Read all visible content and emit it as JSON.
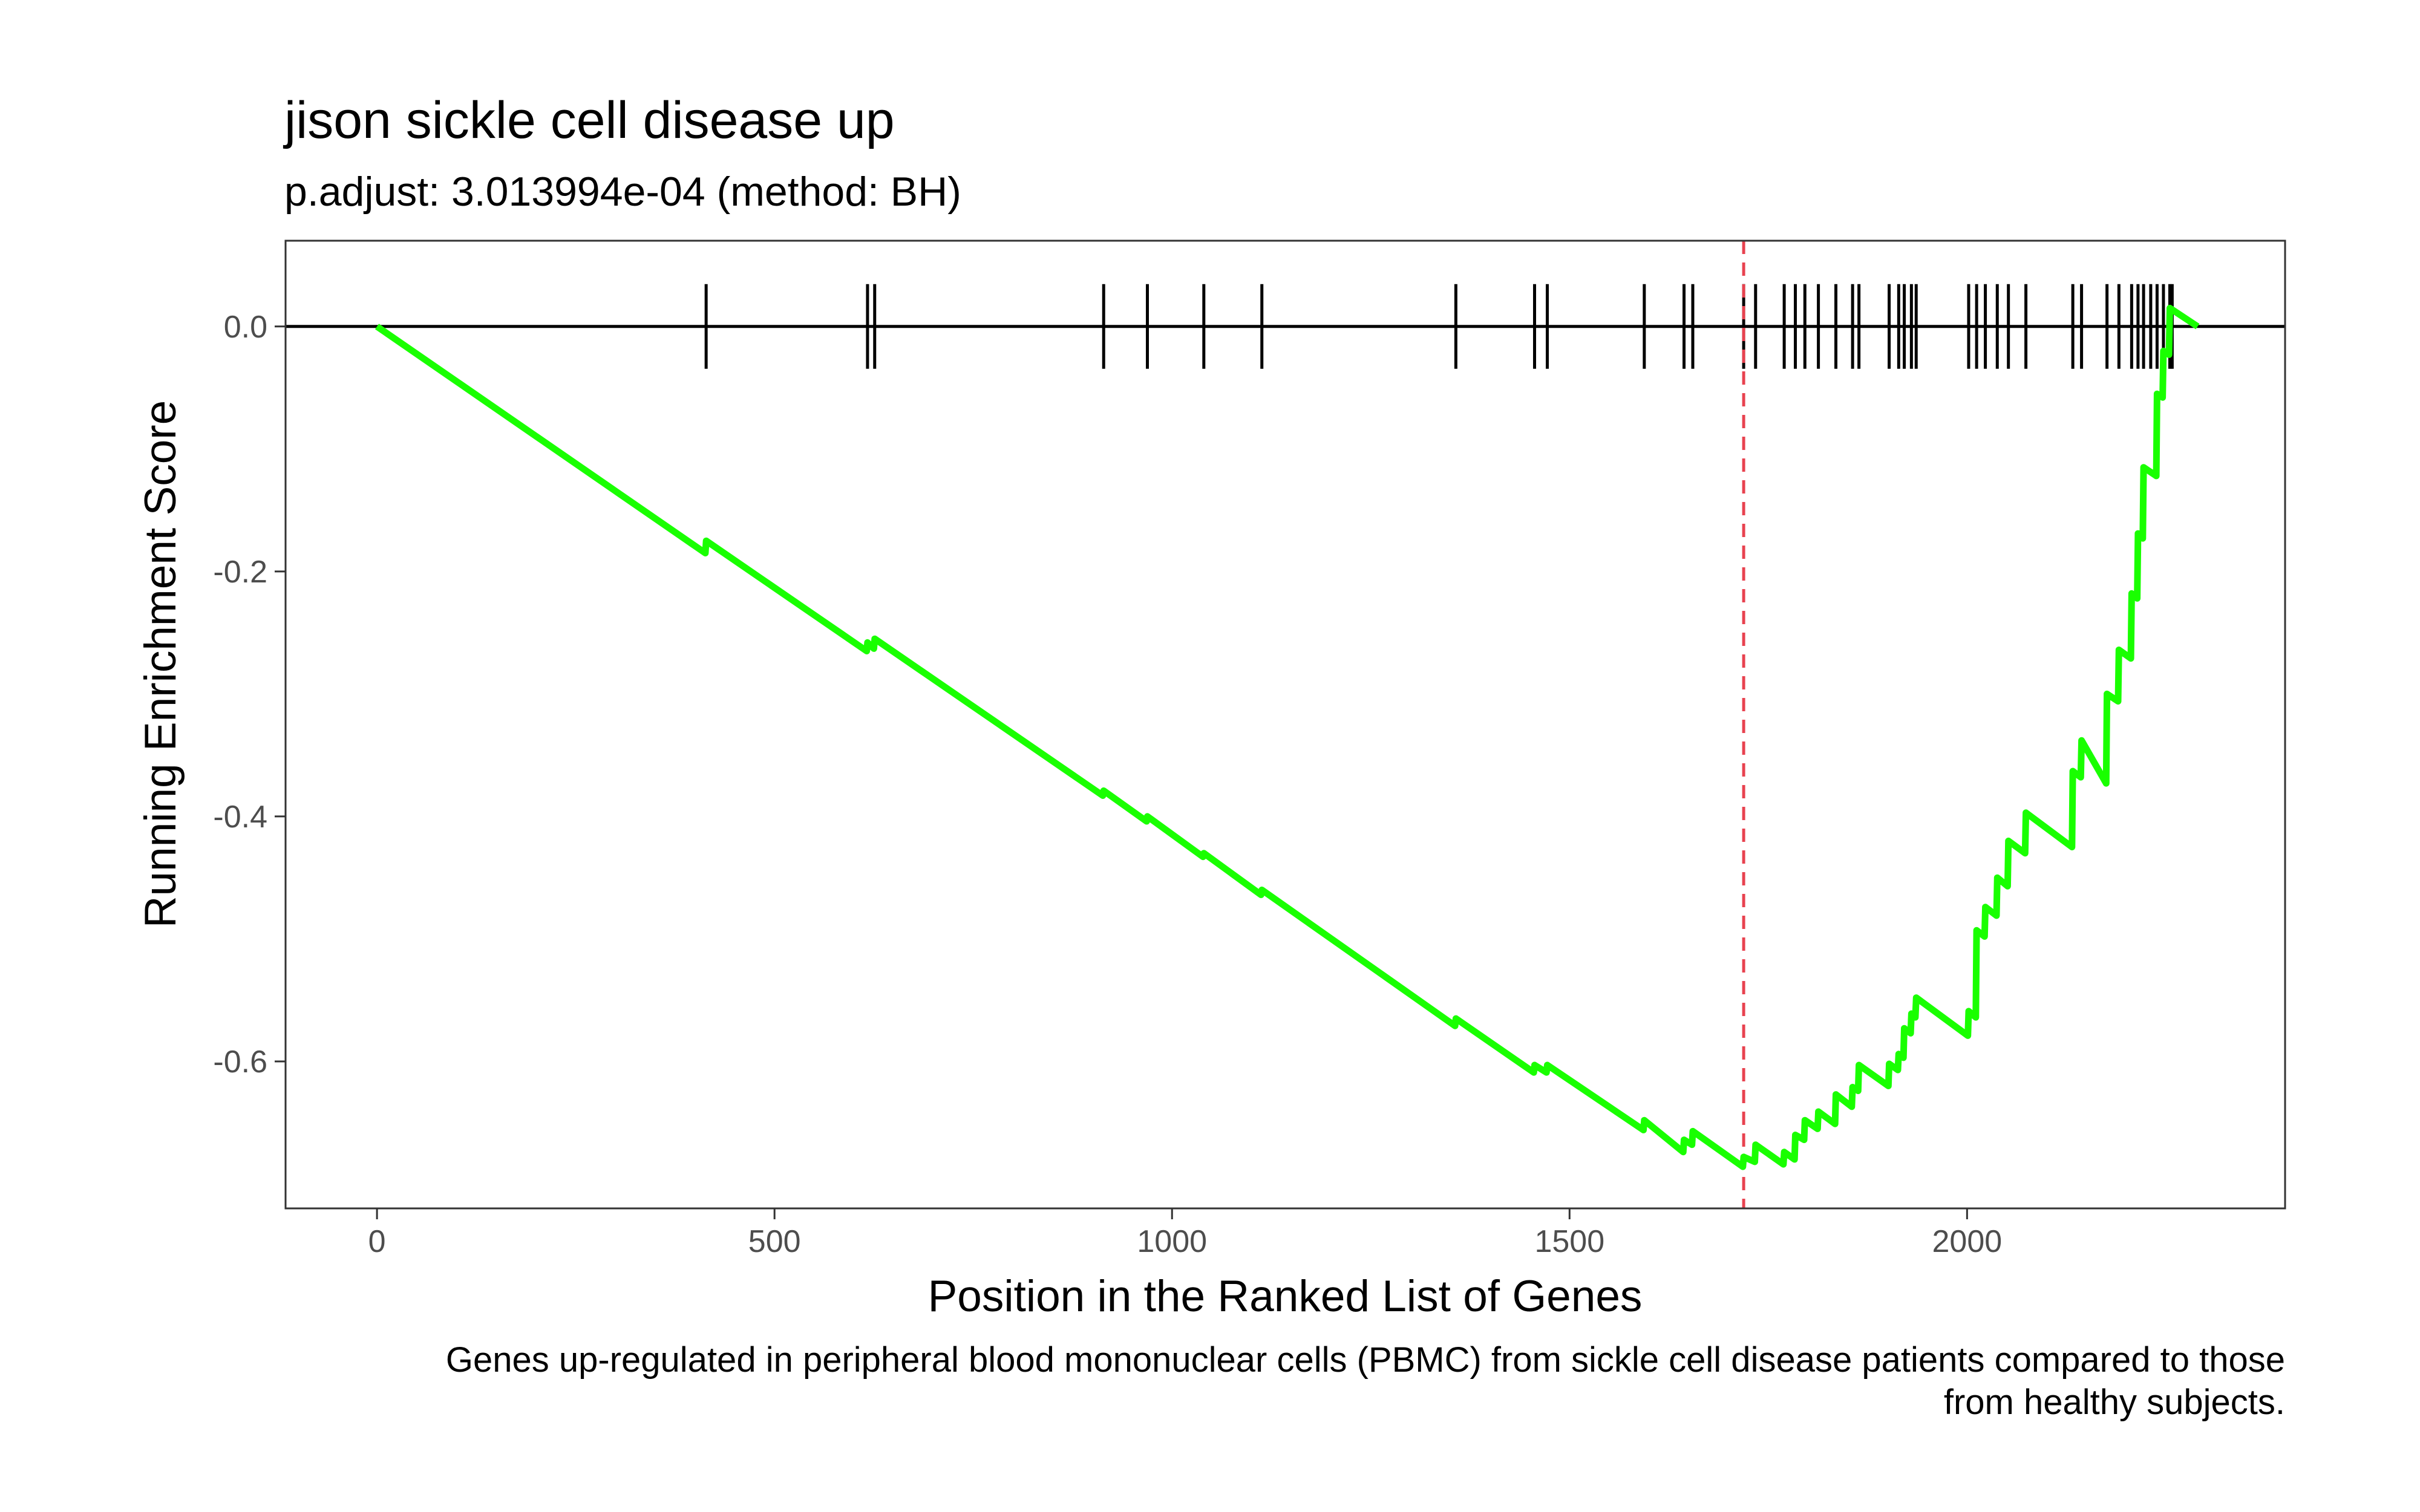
{
  "chart_data": {
    "type": "line",
    "title": "jison sickle cell disease up",
    "subtitle": "p.adjust: 3.013994e-04 (method: BH)",
    "xlabel": "Position in the Ranked List of Genes",
    "ylabel": "Running Enrichment Score",
    "caption_lines": [
      "Genes up-regulated in peripheral blood mononuclear cells (PBMC) from sickle cell disease patients compared to those",
      "from healthy subjects."
    ],
    "xlim": [
      -115,
      2400
    ],
    "ylim": [
      -0.72,
      0.07
    ],
    "x_ticks": [
      0,
      500,
      1000,
      1500,
      2000
    ],
    "x_tick_labels": [
      "0",
      "500",
      "1000",
      "1500",
      "2000"
    ],
    "y_ticks": [
      0.0,
      -0.2,
      -0.4,
      -0.6
    ],
    "y_tick_labels": [
      "0.0",
      "-0.2",
      "-0.4",
      "-0.6"
    ],
    "grid": false,
    "colors": {
      "running_score": "#19ff00",
      "hits": "#000000",
      "zero_line": "#000000",
      "max_deviation": "#e8424f",
      "panel_border": "#333333"
    },
    "n_genes": 2290,
    "hit_positions": [
      414,
      617,
      626,
      914,
      969,
      1040,
      1113,
      1357,
      1456,
      1472,
      1594,
      1644,
      1655,
      1719,
      1734,
      1770,
      1784,
      1796,
      1813,
      1835,
      1856,
      1864,
      1902,
      1914,
      1921,
      1930,
      1936,
      2002,
      2012,
      2023,
      2038,
      2052,
      2074,
      2133,
      2144,
      2176,
      2191,
      2207,
      2215,
      2222,
      2231,
      2239,
      2247,
      2255,
      2258
    ],
    "running_score_points": [
      [
        0,
        0.0
      ],
      [
        413,
        -0.185
      ],
      [
        414,
        -0.175
      ],
      [
        616,
        -0.265
      ],
      [
        617,
        -0.258
      ],
      [
        625,
        -0.263
      ],
      [
        626,
        -0.255
      ],
      [
        913,
        -0.383
      ],
      [
        914,
        -0.379
      ],
      [
        968,
        -0.404
      ],
      [
        969,
        -0.4
      ],
      [
        1039,
        -0.433
      ],
      [
        1040,
        -0.43
      ],
      [
        1112,
        -0.464
      ],
      [
        1113,
        -0.46
      ],
      [
        1356,
        -0.571
      ],
      [
        1357,
        -0.565
      ],
      [
        1455,
        -0.609
      ],
      [
        1456,
        -0.603
      ],
      [
        1471,
        -0.609
      ],
      [
        1472,
        -0.603
      ],
      [
        1593,
        -0.656
      ],
      [
        1594,
        -0.648
      ],
      [
        1643,
        -0.674
      ],
      [
        1644,
        -0.664
      ],
      [
        1654,
        -0.668
      ],
      [
        1655,
        -0.657
      ],
      [
        1718,
        -0.686
      ],
      [
        1719,
        -0.678
      ],
      [
        1733,
        -0.682
      ],
      [
        1734,
        -0.668
      ],
      [
        1769,
        -0.684
      ],
      [
        1770,
        -0.674
      ],
      [
        1783,
        -0.68
      ],
      [
        1784,
        -0.66
      ],
      [
        1795,
        -0.664
      ],
      [
        1796,
        -0.648
      ],
      [
        1812,
        -0.655
      ],
      [
        1813,
        -0.641
      ],
      [
        1834,
        -0.651
      ],
      [
        1835,
        -0.627
      ],
      [
        1855,
        -0.637
      ],
      [
        1856,
        -0.621
      ],
      [
        1863,
        -0.624
      ],
      [
        1864,
        -0.603
      ],
      [
        1901,
        -0.62
      ],
      [
        1902,
        -0.602
      ],
      [
        1913,
        -0.607
      ],
      [
        1914,
        -0.594
      ],
      [
        1920,
        -0.597
      ],
      [
        1921,
        -0.573
      ],
      [
        1929,
        -0.577
      ],
      [
        1930,
        -0.561
      ],
      [
        1935,
        -0.564
      ],
      [
        1936,
        -0.548
      ],
      [
        2001,
        -0.579
      ],
      [
        2002,
        -0.559
      ],
      [
        2011,
        -0.564
      ],
      [
        2012,
        -0.493
      ],
      [
        2022,
        -0.498
      ],
      [
        2023,
        -0.474
      ],
      [
        2037,
        -0.481
      ],
      [
        2038,
        -0.45
      ],
      [
        2051,
        -0.457
      ],
      [
        2052,
        -0.42
      ],
      [
        2073,
        -0.43
      ],
      [
        2074,
        -0.397
      ],
      [
        2132,
        -0.425
      ],
      [
        2133,
        -0.363
      ],
      [
        2143,
        -0.368
      ],
      [
        2144,
        -0.338
      ],
      [
        2175,
        -0.373
      ],
      [
        2176,
        -0.3
      ],
      [
        2190,
        -0.306
      ],
      [
        2191,
        -0.264
      ],
      [
        2206,
        -0.271
      ],
      [
        2207,
        -0.218
      ],
      [
        2214,
        -0.222
      ],
      [
        2215,
        -0.169
      ],
      [
        2221,
        -0.173
      ],
      [
        2222,
        -0.115
      ],
      [
        2238,
        -0.122
      ],
      [
        2239,
        -0.055
      ],
      [
        2246,
        -0.058
      ],
      [
        2247,
        -0.02
      ],
      [
        2254,
        -0.023
      ],
      [
        2255,
        0.015
      ],
      [
        2290,
        0.0
      ]
    ],
    "max_deviation_x": 1719
  }
}
